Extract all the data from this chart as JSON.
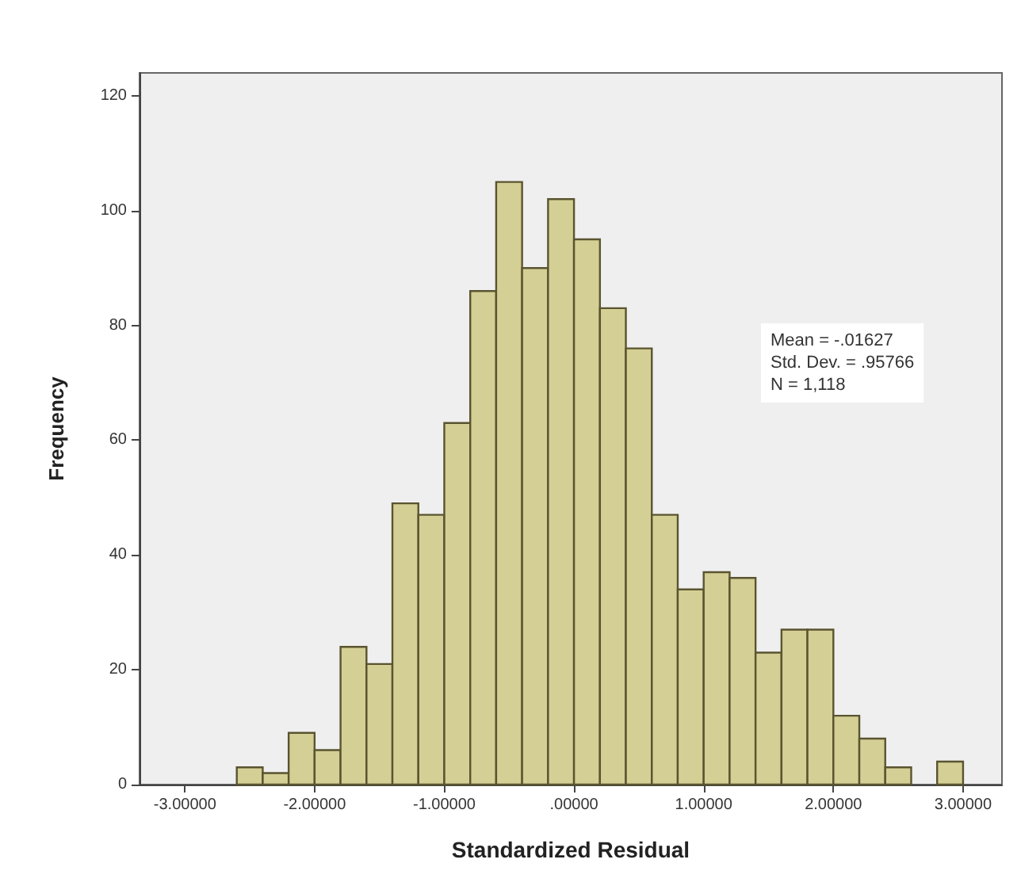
{
  "chart_data": {
    "type": "histogram",
    "xlabel": "Standardized Residual",
    "ylabel": "Frequency",
    "bins": [
      -2.6,
      -2.4,
      -2.2,
      -2.0,
      -1.8,
      -1.6,
      -1.4,
      -1.2,
      -1.0,
      -0.8,
      -0.6,
      -0.4,
      -0.2,
      0.0,
      0.2,
      0.4,
      0.6,
      0.8,
      1.0,
      1.2,
      1.4,
      1.6,
      1.8,
      2.0,
      2.2,
      2.4,
      2.6,
      2.8,
      3.0
    ],
    "values": [
      3,
      2,
      9,
      6,
      24,
      21,
      49,
      47,
      63,
      86,
      105,
      90,
      102,
      95,
      83,
      76,
      47,
      34,
      37,
      36,
      23,
      27,
      27,
      12,
      8,
      3,
      0,
      4
    ],
    "color": "#d4cf94",
    "xlim": [
      -3.35,
      3.3
    ],
    "xticks": [
      {
        "value": -3,
        "label": "-3.00000"
      },
      {
        "value": -2,
        "label": "-2.00000"
      },
      {
        "value": -1,
        "label": "-1.00000"
      },
      {
        "value": 0,
        "label": ".00000"
      },
      {
        "value": 1,
        "label": "1.00000"
      },
      {
        "value": 2,
        "label": "2.00000"
      },
      {
        "value": 3,
        "label": "3.00000"
      }
    ],
    "ylim": [
      0,
      124
    ],
    "yticks": [
      0,
      20,
      40,
      60,
      80,
      100,
      120
    ],
    "grid": false,
    "annotations": [
      "Mean = -.01627",
      "Std. Dev. = .95766",
      "N = 1,118"
    ]
  }
}
